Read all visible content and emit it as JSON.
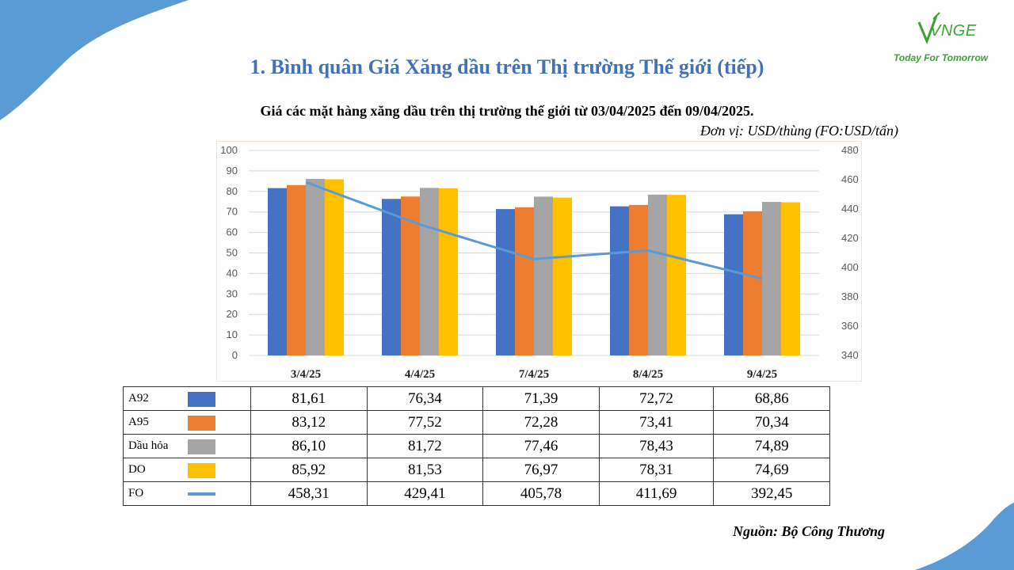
{
  "logo": {
    "brand": "VNGE",
    "tagline": "Today For Tomorrow"
  },
  "page_title": "1. Bình quân Giá Xăng dầu trên Thị trường Thế giới (tiếp)",
  "colors": {
    "title": "#3f72b7",
    "A92": "#4472c4",
    "A95": "#ed7d31",
    "Dầu hỏa": "#a5a5a5",
    "DO": "#ffc000",
    "FO": "#5b9bd5",
    "decor": "#5b9bd5"
  },
  "chart_data": {
    "type": "bar",
    "title": "Giá các mặt hàng xăng dầu trên thị trường thế giới từ 03/04/2025 đến 09/04/2025.",
    "unit_note": "Đơn vị: USD/thùng (FO:USD/tấn)",
    "categories": [
      "3/4/25",
      "4/4/25",
      "7/4/25",
      "8/4/25",
      "9/4/25"
    ],
    "series": [
      {
        "name": "A92",
        "type": "bar",
        "axis": "left",
        "values": [
          81.61,
          76.34,
          71.39,
          72.72,
          68.86
        ],
        "labels": [
          "81,61",
          "76,34",
          "71,39",
          "72,72",
          "68,86"
        ]
      },
      {
        "name": "A95",
        "type": "bar",
        "axis": "left",
        "values": [
          83.12,
          77.52,
          72.28,
          73.41,
          70.34
        ],
        "labels": [
          "83,12",
          "77,52",
          "72,28",
          "73,41",
          "70,34"
        ]
      },
      {
        "name": "Dầu hỏa",
        "type": "bar",
        "axis": "left",
        "values": [
          86.1,
          81.72,
          77.46,
          78.43,
          74.89
        ],
        "labels": [
          "86,10",
          "81,72",
          "77,46",
          "78,43",
          "74,89"
        ]
      },
      {
        "name": "DO",
        "type": "bar",
        "axis": "left",
        "values": [
          85.92,
          81.53,
          76.97,
          78.31,
          74.69
        ],
        "labels": [
          "85,92",
          "81,53",
          "76,97",
          "78,31",
          "74,69"
        ]
      },
      {
        "name": "FO",
        "type": "line",
        "axis": "right",
        "values": [
          458.31,
          429.41,
          405.78,
          411.69,
          392.45
        ],
        "labels": [
          "458,31",
          "429,41",
          "405,78",
          "411,69",
          "392,45"
        ]
      }
    ],
    "ylim_left": [
      0,
      100
    ],
    "yticks_left": [
      "0",
      "10",
      "20",
      "30",
      "40",
      "50",
      "60",
      "70",
      "80",
      "90",
      "100"
    ],
    "ylim_right": [
      340,
      480
    ],
    "yticks_right": [
      "340",
      "360",
      "380",
      "400",
      "420",
      "440",
      "460",
      "480"
    ],
    "grid": true,
    "legend": "data table below chart"
  },
  "source": "Nguồn: Bộ Công Thương"
}
